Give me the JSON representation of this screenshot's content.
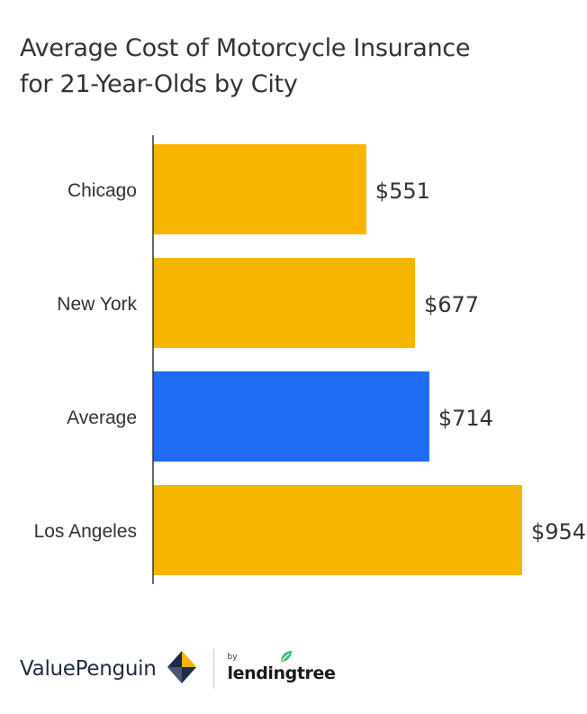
{
  "title": {
    "line1": "Average Cost of Motorcycle Insurance",
    "line2": "for 21-Year-Olds by City"
  },
  "chart_data": {
    "type": "bar",
    "orientation": "horizontal",
    "title": "Average Cost of Motorcycle Insurance for 21-Year-Olds by City",
    "categories": [
      "Chicago",
      "New York",
      "Average",
      "Los Angeles"
    ],
    "values": [
      551,
      677,
      714,
      954
    ],
    "labels": [
      "$551",
      "$677",
      "$714",
      "$954"
    ],
    "bar_colors": [
      "#f7b500",
      "#f7b500",
      "#1f6cf5",
      "#f7b500"
    ],
    "xlim": [
      0,
      954
    ],
    "xlabel": "",
    "ylabel": "",
    "grid": false,
    "legend": "none"
  },
  "footer": {
    "brand": "ValuePenguin",
    "by": "by",
    "partner": "lendingtree",
    "logo_icon": "penguin-diamond-icon",
    "leaf_icon": "leaf-icon",
    "colors": {
      "navy": "#1f2a44",
      "gold": "#f7b500",
      "green": "#3fbf6f"
    }
  }
}
